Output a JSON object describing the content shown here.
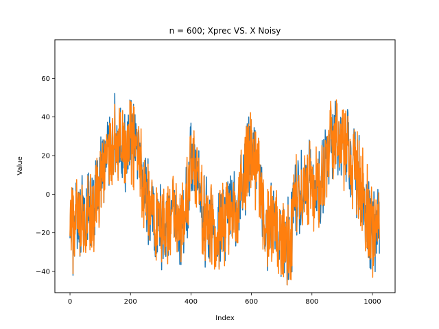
{
  "chart_data": {
    "type": "line",
    "title": "n = 600; Xprec VS. X Noisy",
    "xlabel": "Index",
    "ylabel": "Value",
    "xlim": [
      -50,
      1075
    ],
    "ylim": [
      -51,
      80
    ],
    "xticks": [
      0,
      200,
      400,
      600,
      800,
      1000
    ],
    "yticks": [
      -40,
      -20,
      0,
      20,
      40,
      60
    ],
    "grid": false,
    "legend": "none",
    "n_points": 1024,
    "series": [
      {
        "color": "#1f77b4",
        "x": [
          0,
          25,
          50,
          75,
          100,
          125,
          150,
          175,
          200,
          225,
          250,
          275,
          300,
          325,
          350,
          375,
          400,
          425,
          450,
          475,
          500,
          525,
          550,
          575,
          600,
          625,
          650,
          675,
          700,
          725,
          750,
          775,
          800,
          825,
          850,
          875,
          900,
          925,
          950,
          975,
          1000,
          1023
        ],
        "values": [
          -20,
          -17,
          -15,
          -12,
          8,
          20,
          30,
          18,
          28,
          22,
          2,
          -12,
          -15,
          -15,
          -12,
          -16,
          18,
          0,
          -15,
          -18,
          -18,
          -12,
          -8,
          10,
          22,
          5,
          -18,
          -20,
          -20,
          -25,
          -2,
          8,
          5,
          5,
          18,
          30,
          28,
          20,
          10,
          -5,
          -20,
          -15
        ],
        "noise_amplitude": 22
      },
      {
        "color": "#ff7f0e",
        "x": [
          0,
          25,
          50,
          75,
          100,
          125,
          150,
          175,
          200,
          225,
          250,
          275,
          300,
          325,
          350,
          375,
          400,
          425,
          450,
          475,
          500,
          525,
          550,
          575,
          600,
          625,
          650,
          675,
          700,
          725,
          750,
          775,
          800,
          825,
          850,
          875,
          900,
          925,
          950,
          975,
          1000,
          1023
        ],
        "values": [
          -20,
          -17,
          -15,
          -12,
          8,
          20,
          30,
          18,
          28,
          22,
          2,
          -12,
          -15,
          -15,
          -12,
          -16,
          18,
          0,
          -15,
          -18,
          -18,
          -12,
          -8,
          10,
          22,
          5,
          -18,
          -20,
          -20,
          -25,
          -2,
          8,
          5,
          5,
          18,
          30,
          28,
          20,
          10,
          -5,
          -20,
          -15
        ],
        "noise_amplitude": 22
      }
    ]
  }
}
